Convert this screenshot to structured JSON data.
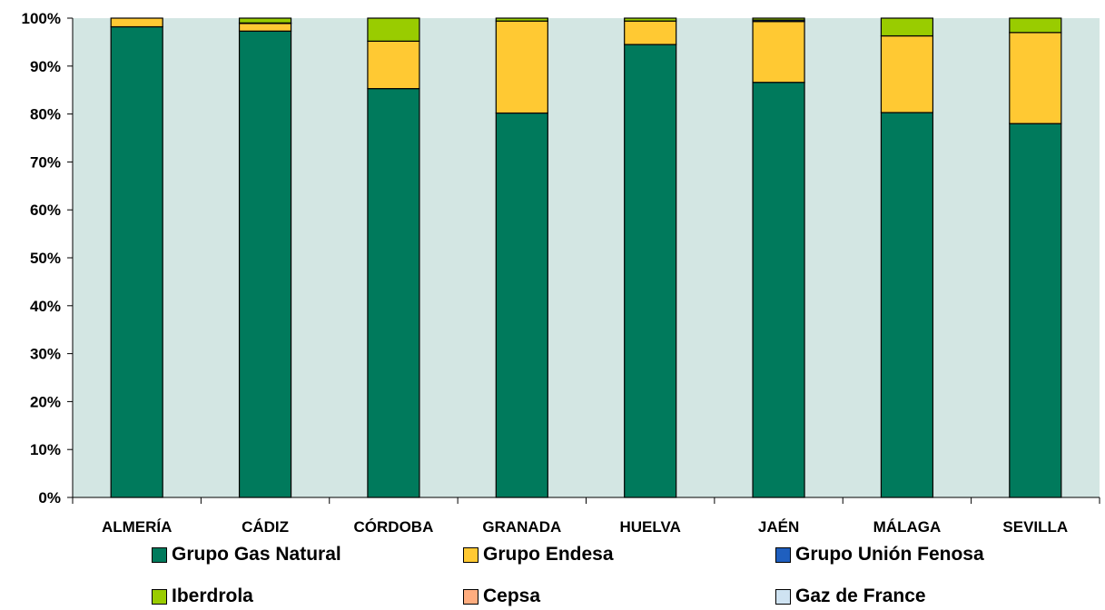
{
  "chart_data": {
    "type": "bar",
    "stacked": true,
    "normalized": true,
    "title": "",
    "xlabel": "",
    "ylabel": "",
    "categories": [
      "ALMERÍA",
      "CÁDIZ",
      "CÓRDOBA",
      "GRANADA",
      "HUELVA",
      "JAÉN",
      "MÁLAGA",
      "SEVILLA"
    ],
    "ylim": [
      0,
      100
    ],
    "y_ticks": [
      "0%",
      "10%",
      "20%",
      "30%",
      "40%",
      "50%",
      "60%",
      "70%",
      "80%",
      "90%",
      "100%"
    ],
    "grid": false,
    "plot_background": "#d3e6e3",
    "legend_position": "bottom",
    "series": [
      {
        "name": "Grupo Gas Natural",
        "color": "#007a5c",
        "values": [
          98.2,
          97.3,
          85.3,
          80.2,
          94.5,
          86.6,
          80.3,
          78.0
        ]
      },
      {
        "name": "Grupo Endesa",
        "color": "#ffc933",
        "values": [
          1.8,
          1.6,
          9.9,
          19.2,
          4.9,
          12.7,
          16.0,
          19.0
        ]
      },
      {
        "name": "Grupo Unión Fenosa",
        "color": "#1f5fbf",
        "values": [
          0.0,
          0.1,
          0.0,
          0.0,
          0.0,
          0.3,
          0.0,
          0.0
        ]
      },
      {
        "name": "Iberdrola",
        "color": "#99cc00",
        "values": [
          0.0,
          1.0,
          4.8,
          0.6,
          0.6,
          0.4,
          3.7,
          3.0
        ]
      },
      {
        "name": "Cepsa",
        "color": "#ffad7f",
        "values": [
          0,
          0,
          0,
          0,
          0,
          0,
          0,
          0
        ]
      },
      {
        "name": "Gaz de France",
        "color": "#cfe3f2",
        "values": [
          0,
          0,
          0,
          0,
          0,
          0,
          0,
          0
        ]
      }
    ]
  }
}
